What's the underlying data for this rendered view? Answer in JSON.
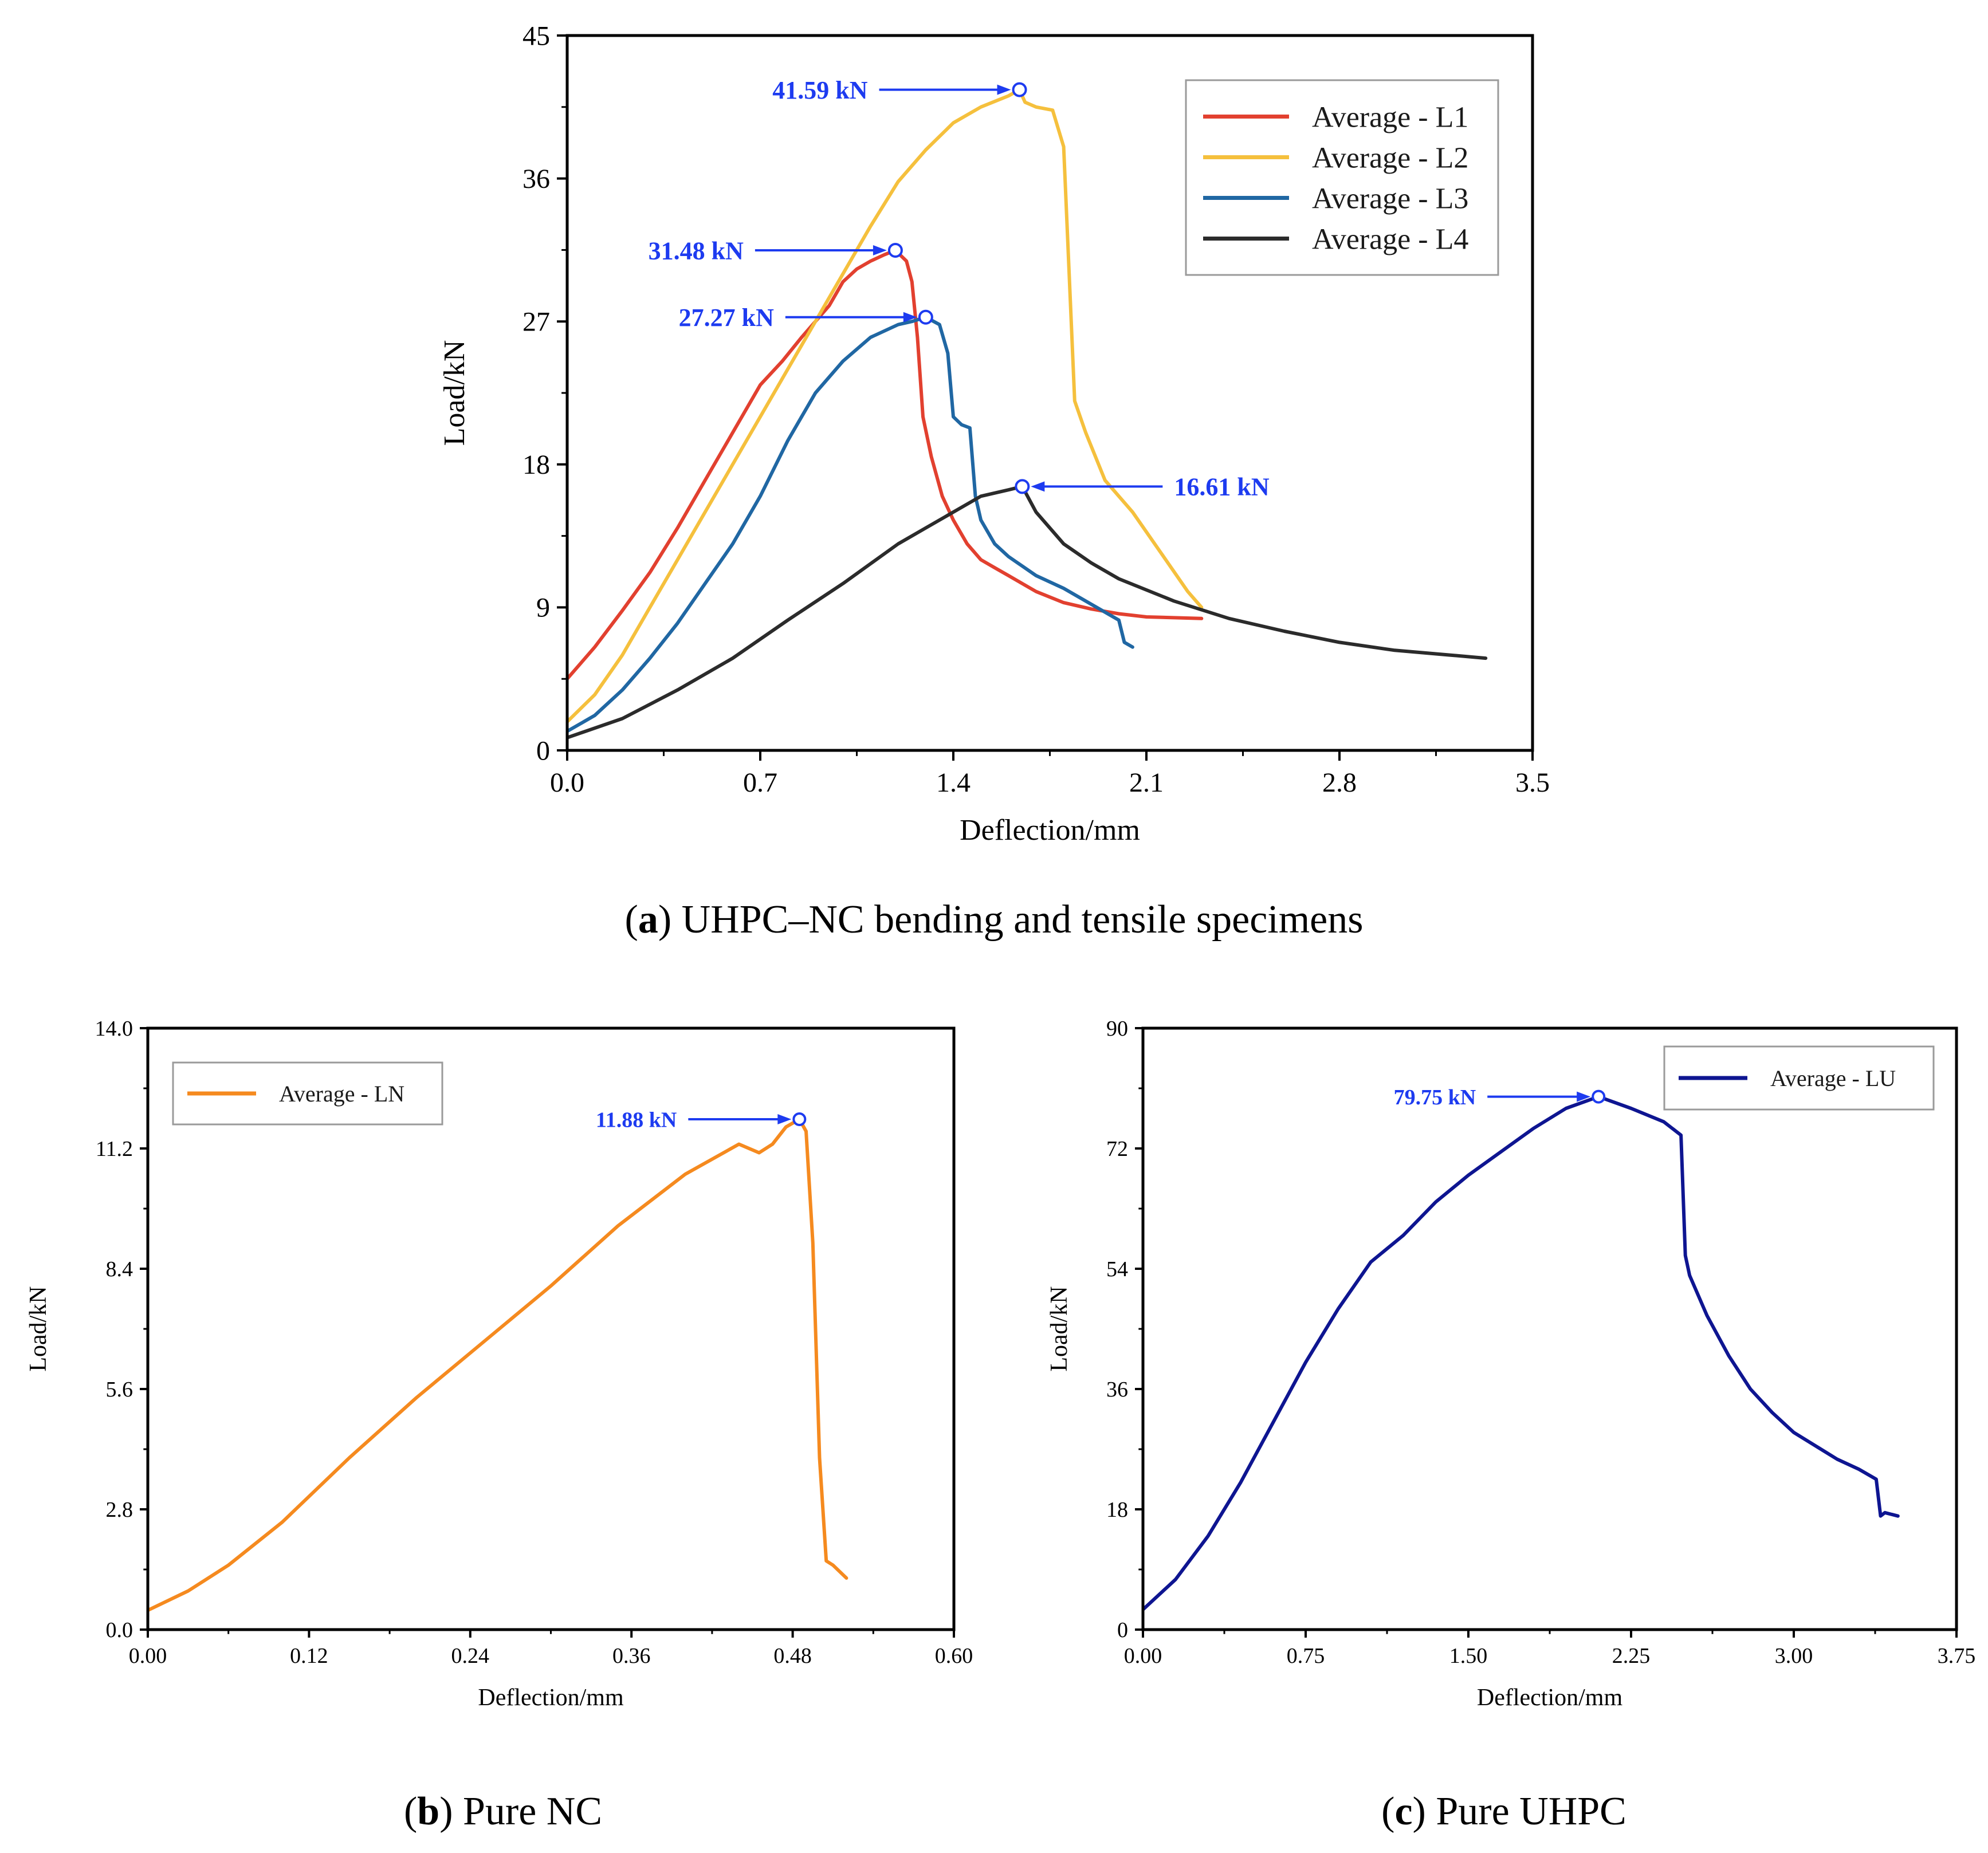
{
  "chart_data": [
    {
      "id": "a",
      "type": "line",
      "xlabel": "Deflection/mm",
      "ylabel": "Load/kN",
      "xlim": [
        0,
        3.5
      ],
      "ylim": [
        0,
        45
      ],
      "xticks": [
        0.0,
        0.7,
        1.4,
        2.1,
        2.8,
        3.5
      ],
      "yticks": [
        0,
        9,
        18,
        27,
        36,
        45
      ],
      "xtick_labels": [
        "0.0",
        "0.7",
        "1.4",
        "2.1",
        "2.8",
        "3.5"
      ],
      "ytick_labels": [
        "0",
        "9",
        "18",
        "27",
        "36",
        "45"
      ],
      "legend_position": "top-right",
      "series": [
        {
          "name": "Average - L1",
          "color": "#e2402f",
          "x": [
            0,
            0.1,
            0.2,
            0.3,
            0.4,
            0.5,
            0.6,
            0.7,
            0.78,
            0.85,
            0.95,
            1.0,
            1.05,
            1.1,
            1.15,
            1.19,
            1.23,
            1.25,
            1.27,
            1.29,
            1.32,
            1.36,
            1.4,
            1.45,
            1.5,
            1.55,
            1.6,
            1.7,
            1.8,
            1.9,
            2.0,
            2.1,
            2.3
          ],
          "y": [
            4.5,
            6.5,
            8.8,
            11.2,
            14.0,
            17.0,
            20.0,
            23.0,
            24.5,
            26.0,
            28.0,
            29.5,
            30.3,
            30.8,
            31.2,
            31.48,
            30.8,
            29.5,
            26.0,
            21.0,
            18.5,
            16.0,
            14.5,
            13.0,
            12.0,
            11.5,
            11.0,
            10.0,
            9.3,
            8.9,
            8.6,
            8.4,
            8.3
          ]
        },
        {
          "name": "Average - L2",
          "color": "#f5c03d",
          "x": [
            0,
            0.1,
            0.2,
            0.3,
            0.4,
            0.5,
            0.6,
            0.7,
            0.8,
            0.9,
            1.0,
            1.1,
            1.2,
            1.3,
            1.4,
            1.5,
            1.6,
            1.64,
            1.66,
            1.7,
            1.76,
            1.8,
            1.82,
            1.84,
            1.88,
            1.95,
            2.05,
            2.15,
            2.25,
            2.3
          ],
          "y": [
            1.8,
            3.5,
            6.0,
            9.0,
            12.0,
            15.0,
            18.0,
            21.0,
            24.0,
            27.0,
            30.0,
            33.0,
            35.8,
            37.8,
            39.5,
            40.5,
            41.2,
            41.59,
            40.8,
            40.5,
            40.3,
            38.0,
            30.0,
            22.0,
            20.0,
            17.0,
            15.0,
            12.5,
            10.0,
            9.0
          ]
        },
        {
          "name": "Average - L3",
          "color": "#2067a3",
          "x": [
            0,
            0.1,
            0.2,
            0.3,
            0.4,
            0.5,
            0.6,
            0.7,
            0.8,
            0.9,
            1.0,
            1.1,
            1.2,
            1.25,
            1.3,
            1.35,
            1.38,
            1.4,
            1.43,
            1.46,
            1.48,
            1.5,
            1.55,
            1.6,
            1.7,
            1.8,
            1.9,
            2.0,
            2.02,
            2.05
          ],
          "y": [
            1.2,
            2.2,
            3.8,
            5.8,
            8.0,
            10.5,
            13.0,
            16.0,
            19.5,
            22.5,
            24.5,
            26.0,
            26.8,
            27.0,
            27.27,
            26.8,
            25.0,
            21.0,
            20.5,
            20.3,
            16.0,
            14.5,
            13.0,
            12.2,
            11.0,
            10.2,
            9.2,
            8.2,
            6.8,
            6.5
          ]
        },
        {
          "name": "Average - L4",
          "color": "#2b2b2b",
          "x": [
            0,
            0.2,
            0.4,
            0.6,
            0.8,
            1.0,
            1.2,
            1.3,
            1.4,
            1.5,
            1.6,
            1.65,
            1.7,
            1.8,
            1.9,
            2.0,
            2.2,
            2.4,
            2.6,
            2.8,
            3.0,
            3.2,
            3.33
          ],
          "y": [
            0.8,
            2.0,
            3.8,
            5.8,
            8.2,
            10.5,
            13.0,
            14.0,
            15.0,
            16.0,
            16.4,
            16.61,
            15.0,
            13.0,
            11.8,
            10.8,
            9.4,
            8.3,
            7.5,
            6.8,
            6.3,
            6.0,
            5.8
          ]
        }
      ],
      "annotations": [
        {
          "label": "41.59 kN",
          "x": 1.64,
          "y": 41.59,
          "side": "left"
        },
        {
          "label": "31.48 kN",
          "x": 1.19,
          "y": 31.48,
          "side": "left"
        },
        {
          "label": "27.27 kN",
          "x": 1.3,
          "y": 27.27,
          "side": "left"
        },
        {
          "label": "16.61 kN",
          "x": 1.65,
          "y": 16.61,
          "side": "right"
        }
      ],
      "caption_letter": "a",
      "caption_text": "UHPC–NC bending and tensile specimens"
    },
    {
      "id": "b",
      "type": "line",
      "xlabel": "Deflection/mm",
      "ylabel": "Load/kN",
      "xlim": [
        0,
        0.6
      ],
      "ylim": [
        0,
        14
      ],
      "xticks": [
        0.0,
        0.12,
        0.24,
        0.36,
        0.48,
        0.6
      ],
      "yticks": [
        0,
        2.8,
        5.6,
        8.4,
        11.2,
        14
      ],
      "xtick_labels": [
        "0.00",
        "0.12",
        "0.24",
        "0.36",
        "0.48",
        "0.60"
      ],
      "ytick_labels": [
        "0.0",
        "2.8",
        "5.6",
        "8.4",
        "11.2",
        "14.0"
      ],
      "legend_position": "top-left",
      "series": [
        {
          "name": "Average - LN",
          "color": "#f58a1f",
          "x": [
            0,
            0.03,
            0.06,
            0.1,
            0.15,
            0.2,
            0.25,
            0.3,
            0.35,
            0.4,
            0.44,
            0.455,
            0.465,
            0.475,
            0.485,
            0.49,
            0.495,
            0.5,
            0.505,
            0.51,
            0.52
          ],
          "y": [
            0.45,
            0.9,
            1.5,
            2.5,
            4.0,
            5.4,
            6.7,
            8.0,
            9.4,
            10.6,
            11.3,
            11.1,
            11.3,
            11.7,
            11.88,
            11.6,
            9.0,
            4.0,
            1.6,
            1.5,
            1.2
          ]
        }
      ],
      "annotations": [
        {
          "label": "11.88 kN",
          "x": 0.485,
          "y": 11.88,
          "side": "left"
        }
      ],
      "caption_letter": "b",
      "caption_text": "Pure NC"
    },
    {
      "id": "c",
      "type": "line",
      "xlabel": "Deflection/mm",
      "ylabel": "Load/kN",
      "xlim": [
        0,
        3.75
      ],
      "ylim": [
        0,
        90
      ],
      "xticks": [
        0.0,
        0.75,
        1.5,
        2.25,
        3.0,
        3.75
      ],
      "yticks": [
        0,
        18,
        36,
        54,
        72,
        90
      ],
      "xtick_labels": [
        "0.00",
        "0.75",
        "1.50",
        "2.25",
        "3.00",
        "3.75"
      ],
      "ytick_labels": [
        "0",
        "18",
        "36",
        "54",
        "72",
        "90"
      ],
      "legend_position": "top-right",
      "series": [
        {
          "name": "Average - LU",
          "color": "#0e1591",
          "x": [
            0,
            0.15,
            0.3,
            0.45,
            0.6,
            0.75,
            0.9,
            1.05,
            1.2,
            1.35,
            1.5,
            1.65,
            1.8,
            1.95,
            2.1,
            2.25,
            2.4,
            2.48,
            2.5,
            2.52,
            2.6,
            2.7,
            2.8,
            2.9,
            3.0,
            3.1,
            3.2,
            3.3,
            3.38,
            3.4,
            3.42,
            3.48
          ],
          "y": [
            3,
            7.5,
            14,
            22,
            31,
            40,
            48,
            55,
            59,
            64,
            68,
            71.5,
            75,
            78,
            79.75,
            78,
            76,
            74,
            56,
            53,
            47,
            41,
            36,
            32.5,
            29.5,
            27.5,
            25.5,
            24,
            22.5,
            17,
            17.5,
            17
          ]
        }
      ],
      "annotations": [
        {
          "label": "79.75 kN",
          "x": 2.1,
          "y": 79.75,
          "side": "left"
        }
      ],
      "caption_letter": "c",
      "caption_text": "Pure UHPC"
    }
  ],
  "colors": {
    "annotation": "#1d3bf0",
    "axis": "#000000"
  }
}
